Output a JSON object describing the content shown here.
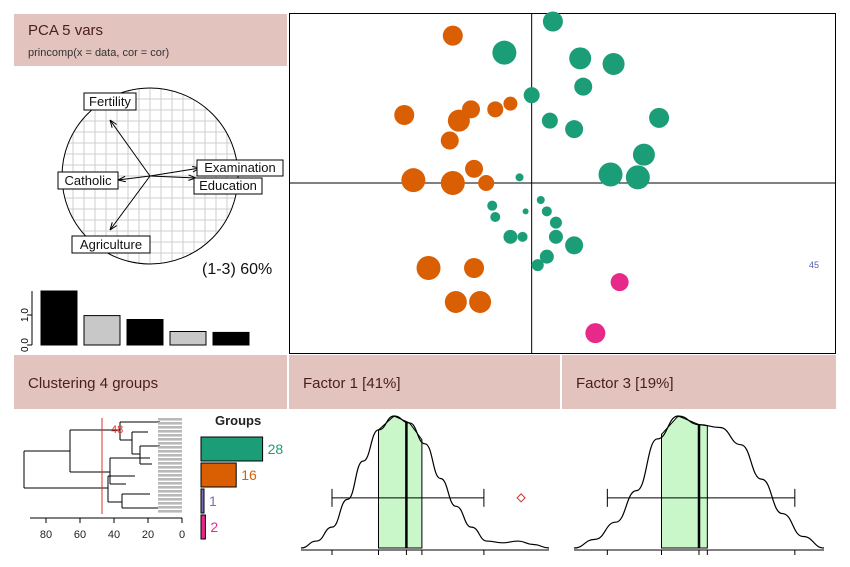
{
  "header_pca": {
    "title": "PCA  5 vars",
    "subtitle": "princomp(x = data, cor = cor)"
  },
  "header_clust": {
    "title": "Clustering  4 groups"
  },
  "header_f1": {
    "title": "Factor 1 [41%]"
  },
  "header_f3": {
    "title": "Factor 3 [19%]"
  },
  "colors": {
    "orange": "#d95f02",
    "green": "#1b9e77",
    "blue": "#7570b3",
    "pink": "#e7298a",
    "hist_fill": "#c9f7c9",
    "header_bg": "#e2c3bd"
  },
  "chart_data": [
    {
      "id": "correlation_circle",
      "type": "vector",
      "variables": [
        "Fertility",
        "Catholic",
        "Examination",
        "Education",
        "Agriculture"
      ],
      "annotation": "(1-3) 60%"
    },
    {
      "id": "eigenvalues",
      "type": "bar",
      "values": [
        1.8,
        0.98,
        0.85,
        0.45,
        0.42
      ],
      "ticks": [
        "0.0",
        "1.0"
      ],
      "ylim": [
        0,
        2
      ]
    },
    {
      "id": "scores_scatter",
      "type": "scatter",
      "xlim": [
        -4,
        5
      ],
      "ylim": [
        -3,
        3
      ],
      "label": "45",
      "points": [
        {
          "x": -1.3,
          "y": 2.6,
          "s": 10,
          "g": "orange"
        },
        {
          "x": -2.1,
          "y": 1.2,
          "s": 10,
          "g": "orange"
        },
        {
          "x": -1.0,
          "y": 1.3,
          "s": 9,
          "g": "orange"
        },
        {
          "x": -1.2,
          "y": 1.1,
          "s": 11,
          "g": "orange"
        },
        {
          "x": -0.6,
          "y": 1.3,
          "s": 8,
          "g": "orange"
        },
        {
          "x": -0.35,
          "y": 1.4,
          "s": 7,
          "g": "orange"
        },
        {
          "x": -1.35,
          "y": 0.75,
          "s": 9,
          "g": "orange"
        },
        {
          "x": -1.95,
          "y": 0.05,
          "s": 12,
          "g": "orange"
        },
        {
          "x": -1.3,
          "y": 0.0,
          "s": 12,
          "g": "orange"
        },
        {
          "x": -0.95,
          "y": 0.25,
          "s": 9,
          "g": "orange"
        },
        {
          "x": -0.75,
          "y": 0.0,
          "s": 8,
          "g": "orange"
        },
        {
          "x": -1.7,
          "y": -1.5,
          "s": 12,
          "g": "orange"
        },
        {
          "x": -0.95,
          "y": -1.5,
          "s": 10,
          "g": "orange"
        },
        {
          "x": -1.25,
          "y": -2.1,
          "s": 11,
          "g": "orange"
        },
        {
          "x": -0.85,
          "y": -2.1,
          "s": 11,
          "g": "orange"
        },
        {
          "x": 0.35,
          "y": 2.85,
          "s": 10,
          "g": "green"
        },
        {
          "x": -0.45,
          "y": 2.3,
          "s": 12,
          "g": "green"
        },
        {
          "x": 0.8,
          "y": 2.2,
          "s": 11,
          "g": "green"
        },
        {
          "x": 1.35,
          "y": 2.1,
          "s": 11,
          "g": "green"
        },
        {
          "x": 0.85,
          "y": 1.7,
          "s": 9,
          "g": "green"
        },
        {
          "x": 0.0,
          "y": 1.55,
          "s": 8,
          "g": "green"
        },
        {
          "x": 0.3,
          "y": 1.1,
          "s": 8,
          "g": "green"
        },
        {
          "x": 0.7,
          "y": 0.95,
          "s": 9,
          "g": "green"
        },
        {
          "x": 2.1,
          "y": 1.15,
          "s": 10,
          "g": "green"
        },
        {
          "x": 1.85,
          "y": 0.5,
          "s": 11,
          "g": "green"
        },
        {
          "x": 1.3,
          "y": 0.15,
          "s": 12,
          "g": "green"
        },
        {
          "x": 1.75,
          "y": 0.1,
          "s": 12,
          "g": "green"
        },
        {
          "x": -0.2,
          "y": 0.1,
          "s": 4,
          "g": "green"
        },
        {
          "x": -0.65,
          "y": -0.4,
          "s": 5,
          "g": "green"
        },
        {
          "x": -0.6,
          "y": -0.6,
          "s": 5,
          "g": "green"
        },
        {
          "x": -0.35,
          "y": -0.95,
          "s": 7,
          "g": "green"
        },
        {
          "x": -0.15,
          "y": -0.95,
          "s": 5,
          "g": "green"
        },
        {
          "x": -0.1,
          "y": -0.5,
          "s": 3,
          "g": "green"
        },
        {
          "x": 0.15,
          "y": -0.3,
          "s": 4,
          "g": "green"
        },
        {
          "x": 0.25,
          "y": -0.5,
          "s": 5,
          "g": "green"
        },
        {
          "x": 0.4,
          "y": -0.7,
          "s": 6,
          "g": "green"
        },
        {
          "x": 0.4,
          "y": -0.95,
          "s": 7,
          "g": "green"
        },
        {
          "x": 0.7,
          "y": -1.1,
          "s": 9,
          "g": "green"
        },
        {
          "x": 0.25,
          "y": -1.3,
          "s": 7,
          "g": "green"
        },
        {
          "x": 0.1,
          "y": -1.45,
          "s": 6,
          "g": "green"
        },
        {
          "x": 1.45,
          "y": -1.75,
          "s": 9,
          "g": "pink"
        },
        {
          "x": 1.05,
          "y": -2.65,
          "s": 10,
          "g": "pink"
        }
      ]
    },
    {
      "id": "dendrogram",
      "type": "dendrogram",
      "xticks": [
        "80",
        "60",
        "40",
        "20",
        "0"
      ],
      "cut_label": "48",
      "legend_title": "Groups",
      "groups": [
        {
          "count": 28,
          "label": "28",
          "color": "green"
        },
        {
          "count": 16,
          "label": "16",
          "color": "orange"
        },
        {
          "count": 1,
          "label": "1",
          "color": "blue"
        },
        {
          "count": 2,
          "label": "2",
          "color": "pink"
        }
      ]
    },
    {
      "id": "factor1_density",
      "type": "area",
      "title": "Factor 1 [41%]",
      "x": [
        -3.5,
        -3,
        -2.5,
        -2,
        -1.5,
        -1,
        -0.5,
        0,
        0.5,
        1,
        1.5,
        2,
        2.5,
        3,
        3.5,
        4,
        4.5
      ],
      "y": [
        0.0,
        0.02,
        0.06,
        0.14,
        0.25,
        0.34,
        0.38,
        0.36,
        0.3,
        0.2,
        0.12,
        0.06,
        0.02,
        0.015,
        0.02,
        0.01,
        0.0
      ],
      "box": {
        "whisker_low": -2.5,
        "q1": -1.0,
        "median": -0.1,
        "q3": 0.4,
        "whisker_high": 2.4
      },
      "outlier": 3.6
    },
    {
      "id": "factor3_density",
      "type": "area",
      "title": "Factor 3 [19%]",
      "x": [
        -3,
        -2.5,
        -2,
        -1.5,
        -1,
        -0.5,
        0,
        0.5,
        1,
        1.5,
        2,
        2.5,
        3
      ],
      "y": [
        0.0,
        0.03,
        0.09,
        0.2,
        0.38,
        0.46,
        0.43,
        0.42,
        0.36,
        0.24,
        0.12,
        0.04,
        0.0
      ],
      "box": {
        "whisker_low": -2.2,
        "q1": -0.9,
        "median": 0.0,
        "q3": 0.2,
        "whisker_high": 2.3
      }
    }
  ]
}
